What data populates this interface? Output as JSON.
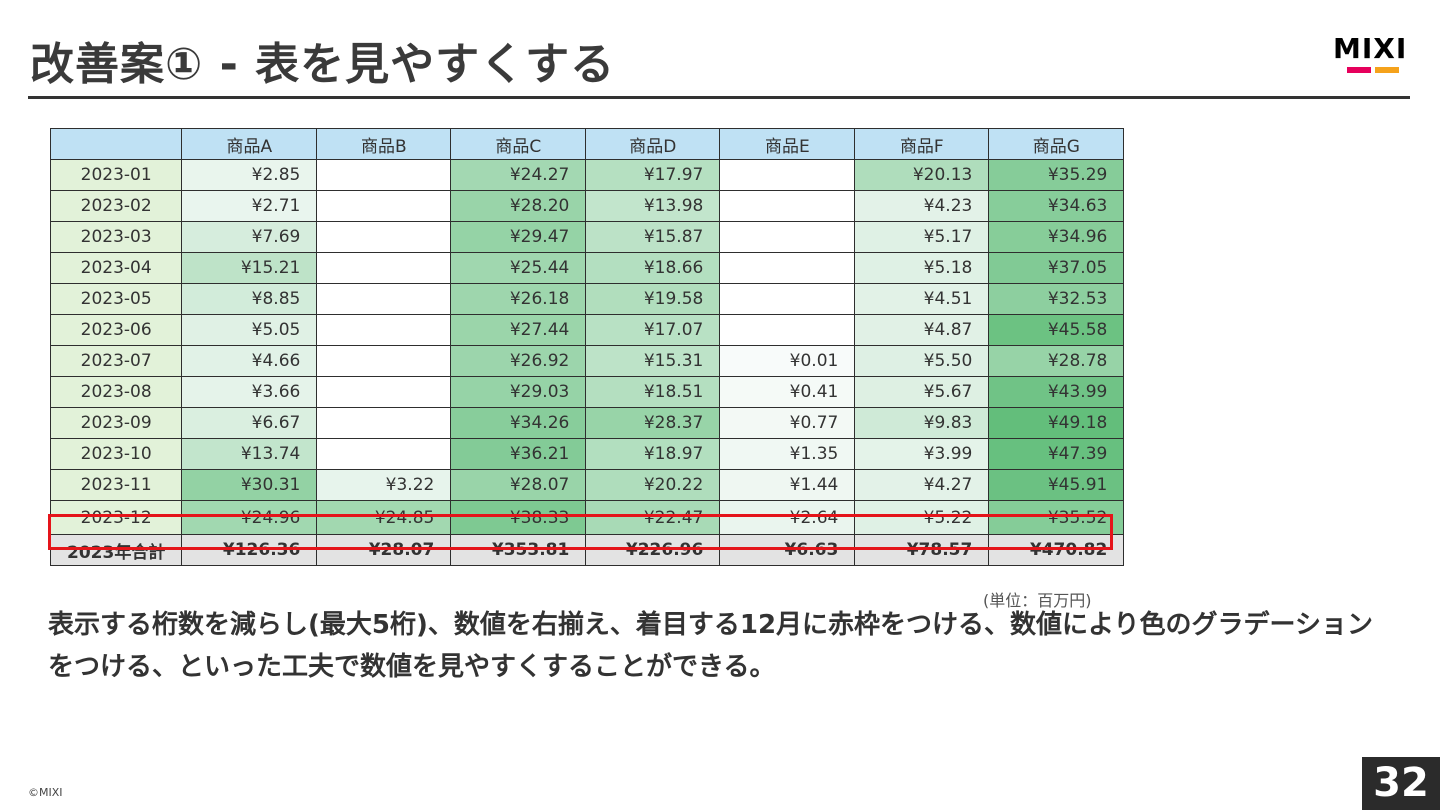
{
  "slide": {
    "title": "改善案① - 表を見やすくする",
    "logo_text": "MIXI",
    "logo_colors": [
      "#e6005c",
      "#f5a21b"
    ],
    "unit_note": "(単位：百万円)",
    "body_text": "表示する桁数を減らし(最大5桁)、数値を右揃え、着目する12月に赤枠をつける、数値により色のグラデーションをつける、といった工夫で数値を見やすくすることができる。",
    "copyright": "©MIXI",
    "page_number": "32",
    "highlight_color": "#e5141a"
  },
  "table": {
    "header_color": "#bfe1f4",
    "month_color": "#e2f2d9",
    "total_color": "#e3e3e3",
    "headers": [
      "",
      "商品A",
      "商品B",
      "商品C",
      "商品D",
      "商品E",
      "商品F",
      "商品G"
    ],
    "rows": [
      {
        "month": "2023-01",
        "cells": [
          "¥2.85",
          "",
          "¥24.27",
          "¥17.97",
          "",
          "¥20.13",
          "¥35.29"
        ]
      },
      {
        "month": "2023-02",
        "cells": [
          "¥2.71",
          "",
          "¥28.20",
          "¥13.98",
          "",
          "¥4.23",
          "¥34.63"
        ]
      },
      {
        "month": "2023-03",
        "cells": [
          "¥7.69",
          "",
          "¥29.47",
          "¥15.87",
          "",
          "¥5.17",
          "¥34.96"
        ]
      },
      {
        "month": "2023-04",
        "cells": [
          "¥15.21",
          "",
          "¥25.44",
          "¥18.66",
          "",
          "¥5.18",
          "¥37.05"
        ]
      },
      {
        "month": "2023-05",
        "cells": [
          "¥8.85",
          "",
          "¥26.18",
          "¥19.58",
          "",
          "¥4.51",
          "¥32.53"
        ]
      },
      {
        "month": "2023-06",
        "cells": [
          "¥5.05",
          "",
          "¥27.44",
          "¥17.07",
          "",
          "¥4.87",
          "¥45.58"
        ]
      },
      {
        "month": "2023-07",
        "cells": [
          "¥4.66",
          "",
          "¥26.92",
          "¥15.31",
          "¥0.01",
          "¥5.50",
          "¥28.78"
        ]
      },
      {
        "month": "2023-08",
        "cells": [
          "¥3.66",
          "",
          "¥29.03",
          "¥18.51",
          "¥0.41",
          "¥5.67",
          "¥43.99"
        ]
      },
      {
        "month": "2023-09",
        "cells": [
          "¥6.67",
          "",
          "¥34.26",
          "¥28.37",
          "¥0.77",
          "¥9.83",
          "¥49.18"
        ]
      },
      {
        "month": "2023-10",
        "cells": [
          "¥13.74",
          "",
          "¥36.21",
          "¥18.97",
          "¥1.35",
          "¥3.99",
          "¥47.39"
        ]
      },
      {
        "month": "2023-11",
        "cells": [
          "¥30.31",
          "¥3.22",
          "¥28.07",
          "¥20.22",
          "¥1.44",
          "¥4.27",
          "¥45.91"
        ]
      },
      {
        "month": "2023-12",
        "cells": [
          "¥24.96",
          "¥24.85",
          "¥38.33",
          "¥22.47",
          "¥2.64",
          "¥5.22",
          "¥35.52"
        ]
      }
    ],
    "total": {
      "label": "2023年合計",
      "cells": [
        "¥126.36",
        "¥28.07",
        "¥353.81",
        "¥226.96",
        "¥6.63",
        "¥78.57",
        "¥470.82"
      ]
    }
  }
}
